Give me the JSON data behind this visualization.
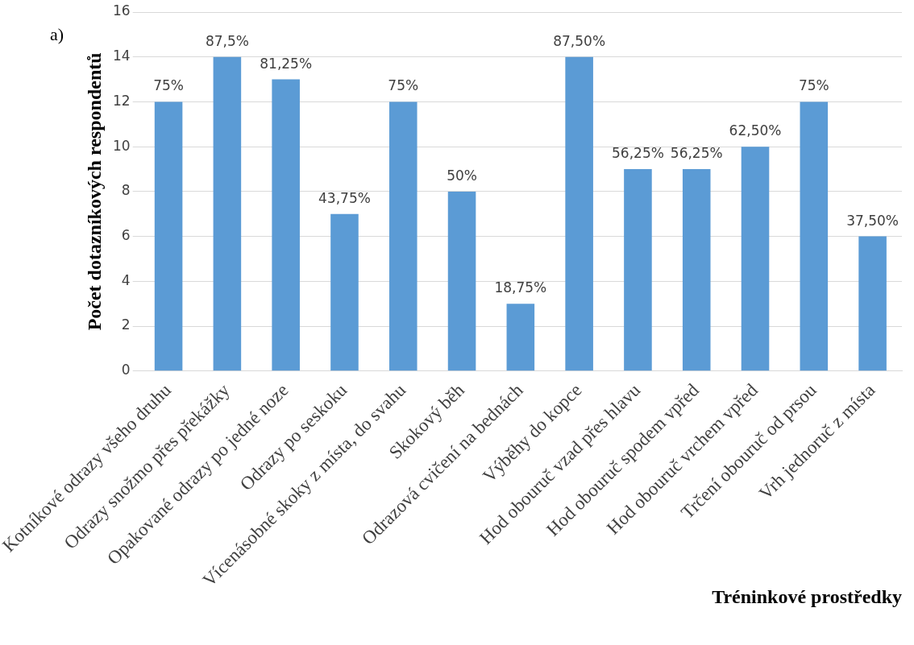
{
  "chart_data": {
    "type": "bar",
    "xlabel": "Tréninkové prostředky",
    "ylabel": "Počet dotazníkových respondentů",
    "annotations": [
      "a)",
      {
        "text": "75%",
        "x": "Kotníkové odrazy všeho druhu",
        "y": 12
      },
      {
        "text": "87,5%",
        "x": "Odrazy snožmo přes překážky",
        "y": 14
      },
      {
        "text": "81,25%",
        "x": "Opakované odrazy po jedné noze",
        "y": 13
      },
      {
        "text": "43,75%",
        "x": "Odrazy po seskoku",
        "y": 7
      },
      {
        "text": "75%",
        "x": "Vícenásobné skoky z místa, do svahu",
        "y": 12
      },
      {
        "text": "50%",
        "x": "Skokový běh",
        "y": 8
      },
      {
        "text": "18,75%",
        "x": "Odrazová cvičení na bednách",
        "y": 3
      },
      {
        "text": "87,50%",
        "x": "Výběhy do kopce",
        "y": 14
      },
      {
        "text": "56,25%",
        "x": "Hod obouruč vzad přes hlavu",
        "y": 9
      },
      {
        "text": "56,25%",
        "x": "Hod obouruč spodem vpřed",
        "y": 9
      },
      {
        "text": "62,50%",
        "x": "Hod obouruč vrchem vpřed",
        "y": 10
      },
      {
        "text": "75%",
        "x": "Trčení obouruč od prsou",
        "y": 12
      },
      {
        "text": "37,50%",
        "x": "Vrh jednoruč z místa",
        "y": 6
      }
    ],
    "categories": [
      "Kotníkové odrazy všeho druhu",
      "Odrazy snožmo přes překážky",
      "Opakované odrazy po jedné noze",
      "Odrazy po seskoku",
      "Vícenásobné skoky z místa, do svahu",
      "Skokový běh",
      "Odrazová cvičení na bednách",
      "Výběhy do kopce",
      "Hod obouruč vzad přes hlavu",
      "Hod obouruč spodem vpřed",
      "Hod obouruč vrchem vpřed",
      "Trčení obouruč od prsou",
      "Vrh jednoruč z místa"
    ],
    "values": [
      12,
      14,
      13,
      7,
      12,
      8,
      3,
      14,
      9,
      9,
      10,
      12,
      6
    ],
    "color": "#5b9bd5",
    "ylim": [
      0,
      16
    ],
    "yticks": [
      0,
      2,
      4,
      6,
      8,
      10,
      12,
      14,
      16
    ],
    "grid": "y",
    "legend": false
  }
}
